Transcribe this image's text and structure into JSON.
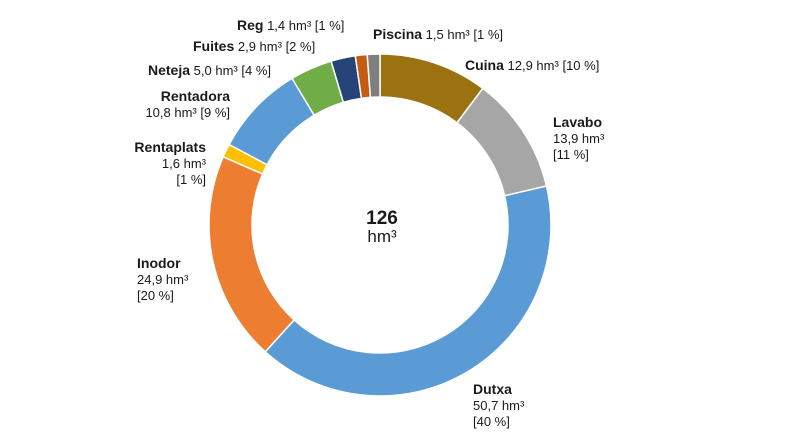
{
  "chart_data": {
    "type": "donut",
    "total": "126",
    "total_unit": "hm³",
    "slices": [
      {
        "name": "Cuina",
        "value_text": "12,9 hm³",
        "pct_text": "[10 %]",
        "value": 12.9,
        "color": "#9b7210"
      },
      {
        "name": "Lavabo",
        "value_text": "13,9 hm³",
        "pct_text": "[11 %]",
        "value": 13.9,
        "color": "#a6a6a6"
      },
      {
        "name": "Dutxa",
        "value_text": "50,7 hm³",
        "pct_text": "[40 %]",
        "value": 50.7,
        "color": "#5b9bd5"
      },
      {
        "name": "Inodor",
        "value_text": "24,9 hm³",
        "pct_text": "[20 %]",
        "value": 24.9,
        "color": "#ed7d31"
      },
      {
        "name": "Rentaplats",
        "value_text": "1,6 hm³",
        "pct_text": "[1 %]",
        "value": 1.6,
        "color": "#ffc000"
      },
      {
        "name": "Rentadora",
        "value_text": "10,8 hm³",
        "pct_text": "[9 %]",
        "value": 10.8,
        "color": "#5b9bd5"
      },
      {
        "name": "Neteja",
        "value_text": "5,0 hm³",
        "pct_text": "[4 %]",
        "value": 5.0,
        "color": "#70ad47"
      },
      {
        "name": "Fuites",
        "value_text": "2,9 hm³",
        "pct_text": "[2 %]",
        "value": 2.9,
        "color": "#264478"
      },
      {
        "name": "Reg",
        "value_text": "1,4 hm³",
        "pct_text": "[1 %]",
        "value": 1.4,
        "color": "#c55a11"
      },
      {
        "name": "Piscina",
        "value_text": "1,5 hm³",
        "pct_text": "[1 %]",
        "value": 1.5,
        "color": "#7f7f7f"
      }
    ]
  }
}
